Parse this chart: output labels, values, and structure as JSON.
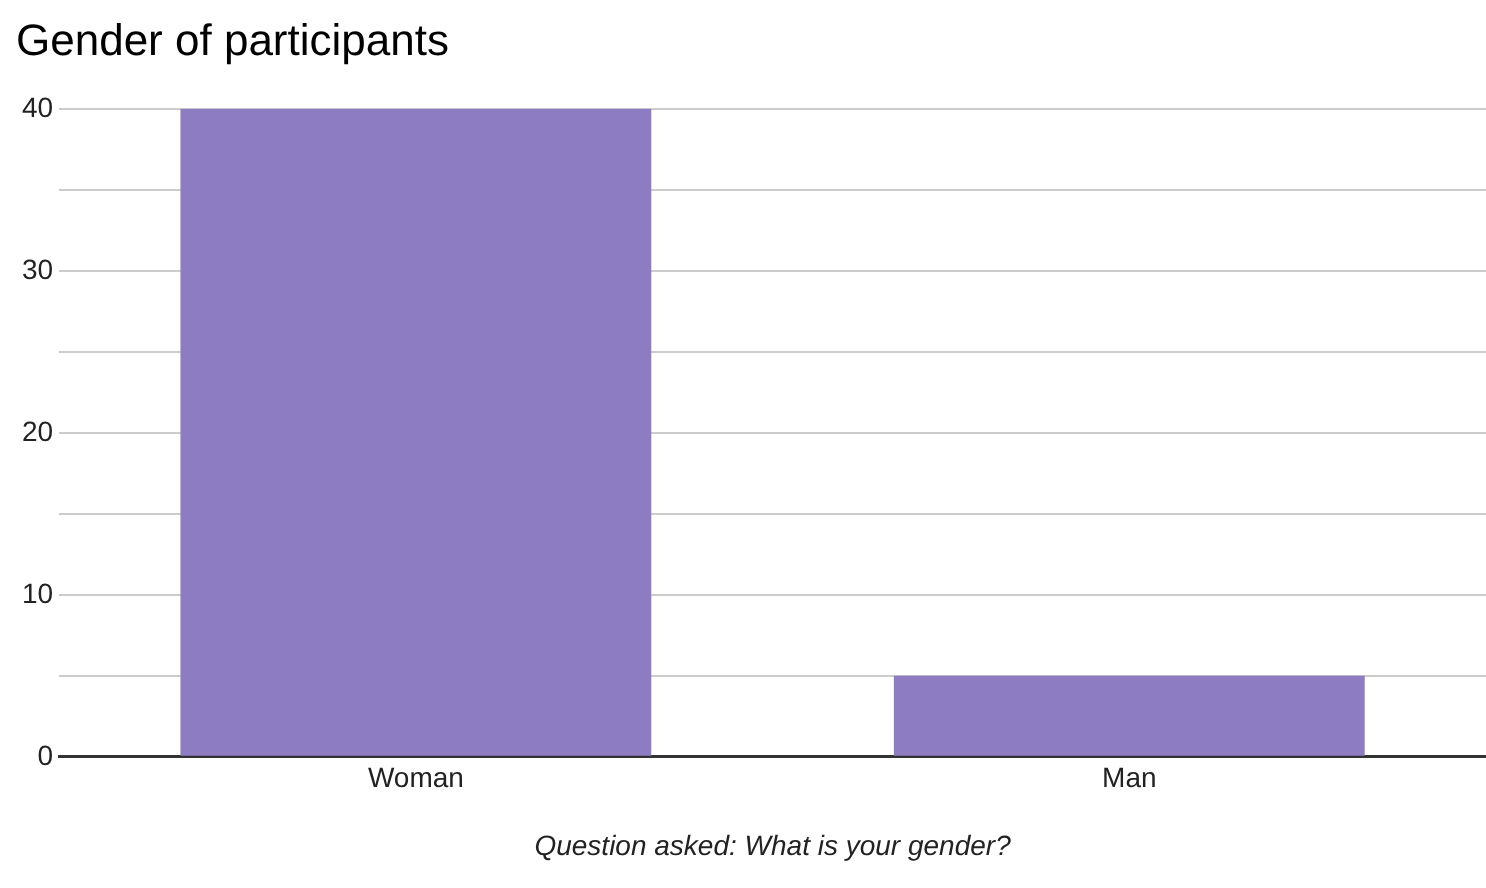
{
  "chart_data": {
    "type": "bar",
    "title": "Gender of participants",
    "xlabel": "Question asked: What is your gender?",
    "categories": [
      "Woman",
      "Man"
    ],
    "values": [
      40,
      5
    ],
    "color": "#8e7cc3",
    "ylim": [
      0,
      40
    ],
    "yticks": [
      0,
      {
        "value": 5,
        "label": null
      },
      10,
      {
        "value": 15,
        "label": null
      },
      20,
      {
        "value": 25,
        "label": null
      },
      30,
      {
        "value": 35,
        "label": null
      },
      40
    ],
    "grid": "y",
    "legend": false
  }
}
